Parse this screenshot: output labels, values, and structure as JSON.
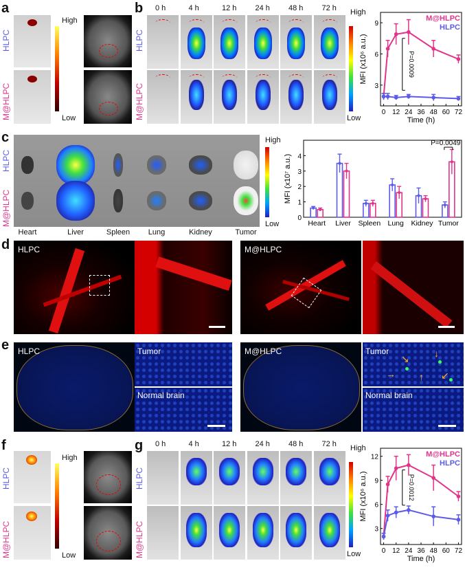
{
  "panels": {
    "a": {
      "label": "a",
      "rows": [
        "HLPC",
        "M@HLPC"
      ],
      "scale_high": "High",
      "scale_low": "Low"
    },
    "b": {
      "label": "b",
      "times": [
        "0 h",
        "4 h",
        "12 h",
        "24 h",
        "48 h",
        "72 h"
      ],
      "rows": [
        "HLPC",
        "M@HLPC"
      ],
      "scale_high": "High",
      "scale_low": "Low"
    },
    "c": {
      "label": "c",
      "rows": [
        "HLPC",
        "M@HLPC"
      ],
      "organs": [
        "Heart",
        "Liver",
        "Spleen",
        "Lung",
        "Kidney",
        "Tumor"
      ],
      "scale_high": "High",
      "scale_low": "Low"
    },
    "d": {
      "label": "d",
      "left": "HLPC",
      "right": "M@HLPC"
    },
    "e": {
      "label": "e",
      "left": "HLPC",
      "right": "M@HLPC",
      "tumor": "Tumor",
      "normal": "Normal brain"
    },
    "f": {
      "label": "f",
      "rows": [
        "HLPC",
        "M@HLPC"
      ],
      "scale_high": "High",
      "scale_low": "Low"
    },
    "g": {
      "label": "g",
      "times": [
        "0 h",
        "4 h",
        "12 h",
        "24 h",
        "48 h",
        "72 h"
      ],
      "rows": [
        "HLPC",
        "M@HLPC"
      ],
      "scale_high": "High",
      "scale_low": "Low"
    }
  },
  "chart_data": [
    {
      "id": "b-chart",
      "type": "line",
      "x": [
        0,
        4,
        12,
        24,
        48,
        72
      ],
      "series": [
        {
          "name": "M@HLPC",
          "values": [
            1.9,
            6.5,
            7.9,
            8.1,
            6.5,
            5.5
          ],
          "err": [
            0.3,
            0.8,
            1.0,
            1.2,
            0.8,
            0.4
          ],
          "color": "#e2338a"
        },
        {
          "name": "HLPC",
          "values": [
            1.9,
            1.9,
            1.8,
            1.9,
            1.8,
            1.7
          ],
          "err": [
            0.3,
            0.3,
            0.2,
            0.2,
            0.3,
            0.2
          ],
          "color": "#5b5be8"
        }
      ],
      "ylabel": "MFI (x10⁶ a.u.)",
      "xlabel": "Time (h)",
      "xticks": [
        0,
        12,
        24,
        36,
        48,
        60,
        72
      ],
      "yticks": [
        3,
        6,
        9
      ],
      "ylim": [
        1,
        10
      ],
      "xlim": [
        -3,
        75
      ],
      "annotation": "P=0.0009"
    },
    {
      "id": "c-chart",
      "type": "bar",
      "categories": [
        "Heart",
        "Liver",
        "Spleen",
        "Lung",
        "Kidney",
        "Tumor"
      ],
      "series": [
        {
          "name": "HLPC",
          "values": [
            0.6,
            3.5,
            0.9,
            2.1,
            1.4,
            0.8
          ],
          "err": [
            0.1,
            0.6,
            0.2,
            0.4,
            0.5,
            0.2
          ],
          "color": "#5b5be8"
        },
        {
          "name": "M@HLPC",
          "values": [
            0.5,
            3.0,
            0.9,
            1.6,
            1.2,
            3.6
          ],
          "err": [
            0.1,
            0.5,
            0.2,
            0.4,
            0.2,
            0.8
          ],
          "color": "#e2338a"
        }
      ],
      "ylabel": "MFI (x10⁷ a.u.)",
      "yticks": [
        0,
        1,
        2,
        3,
        4
      ],
      "ylim": [
        0,
        5
      ],
      "annotation": "P=0.0049"
    },
    {
      "id": "g-chart",
      "type": "line",
      "x": [
        0,
        4,
        12,
        24,
        48,
        72
      ],
      "series": [
        {
          "name": "M@HLPC",
          "values": [
            2.0,
            8.5,
            10.5,
            10.9,
            9.3,
            7.0
          ],
          "err": [
            0.4,
            1.0,
            1.5,
            1.3,
            1.6,
            0.6
          ],
          "color": "#e2338a"
        },
        {
          "name": "HLPC",
          "values": [
            2.0,
            4.6,
            5.0,
            5.3,
            4.5,
            4.1
          ],
          "err": [
            0.4,
            0.7,
            0.7,
            0.5,
            1.2,
            0.6
          ],
          "color": "#5b5be8"
        }
      ],
      "ylabel": "MFI (x10⁶ a.u.)",
      "xlabel": "Time (h)",
      "xticks": [
        0,
        12,
        24,
        36,
        48,
        60,
        72
      ],
      "yticks": [
        3,
        6,
        9,
        12
      ],
      "ylim": [
        1,
        13
      ],
      "xlim": [
        -3,
        75
      ],
      "annotation": "P=0.0012"
    }
  ]
}
